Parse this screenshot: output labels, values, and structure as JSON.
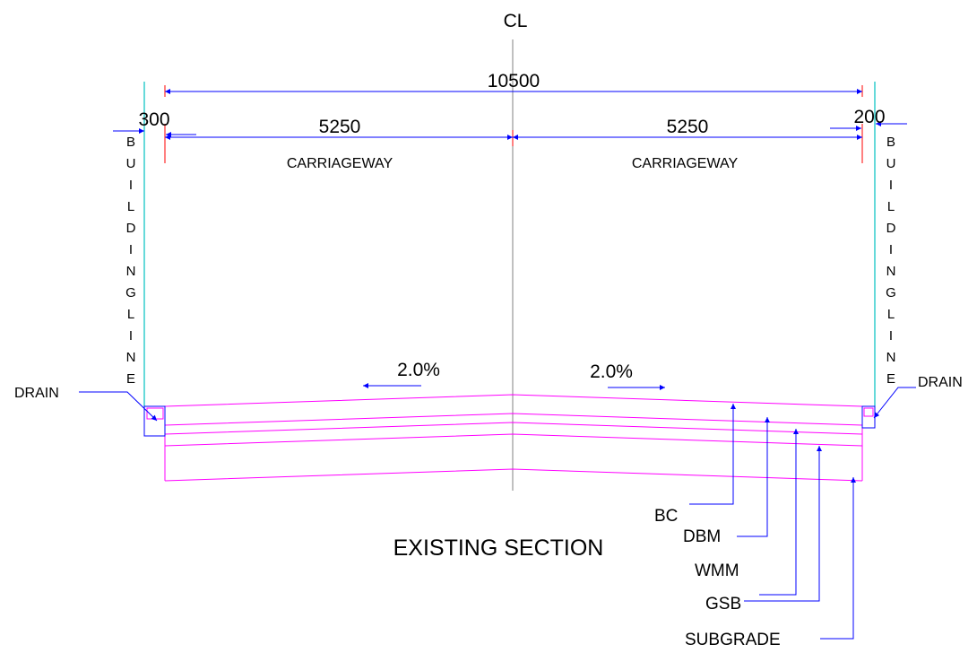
{
  "centerline": {
    "label": "CL"
  },
  "dimensions": {
    "overall": "10500",
    "left_offset": "300",
    "right_offset": "200",
    "left_half": "5250",
    "right_half": "5250"
  },
  "zones": {
    "left": "CARRIAGEWAY",
    "right": "CARRIAGEWAY"
  },
  "building_line": {
    "letters": [
      "B",
      "U",
      "I",
      "L",
      "D",
      "I",
      "N",
      "G",
      "L",
      "I",
      "N",
      "E"
    ]
  },
  "slopes": {
    "left": "2.0%",
    "right": "2.0%"
  },
  "drains": {
    "left": "DRAIN",
    "right": "DRAIN"
  },
  "layers": [
    "BC",
    "DBM",
    "WMM",
    "GSB",
    "SUBGRADE"
  ],
  "title": "EXISTING SECTION",
  "colors": {
    "dimension": "#0000ff",
    "layer": "#ff00ff",
    "building_line": "#00c0c0",
    "tick": "#ff0000",
    "centerline": "#808080",
    "drain": "#0000ff"
  }
}
